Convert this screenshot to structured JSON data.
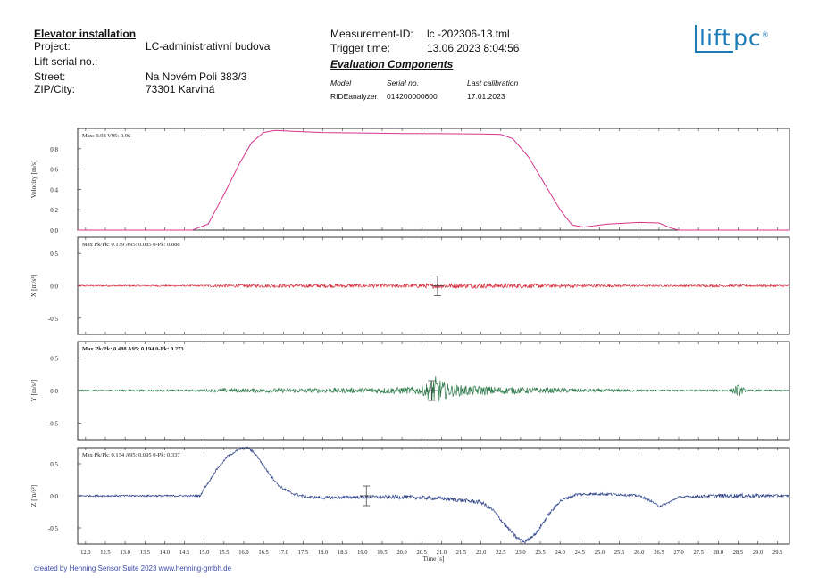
{
  "header": {
    "title": "Elevator installation",
    "project_label": "Project:",
    "project_value": "LC-administrativní budova",
    "serial_label": "Lift serial no.:",
    "street_label": "Street:",
    "street_value": "Na Novém Poli 383/3",
    "zip_label": "ZIP/City:",
    "zip_value": "73301 Karviná",
    "measurement_label": "Measurement-ID:",
    "measurement_value": "lc -202306-13.tml",
    "trigger_label": "Trigger time:",
    "trigger_value": "13.06.2023 8:04:56",
    "eval_title": "Evaluation Components",
    "col_model": "Model",
    "col_serial": "Serial no.",
    "col_calib": "Last calibration",
    "model": "RIDEanalyzer",
    "serial": "014200000600",
    "calibration": "17.01.2023"
  },
  "logo": {
    "text": "lift",
    "text2": "pc",
    "mark": "®",
    "color": "#1d7bb8"
  },
  "footer": "created by Henning Sensor Suite 2023 www.henning-gmbh.de",
  "chart_data": [
    {
      "type": "line",
      "ylabel": "Velocity [m/s]",
      "annotation": "Max: 0.98 V95: 0.96",
      "ylim": [
        0,
        1.0
      ],
      "yticks": [
        0.0,
        0.2,
        0.4,
        0.6,
        0.8
      ],
      "color": "#d4368c",
      "series": [
        {
          "points": [
            [
              11.8,
              0
            ],
            [
              14.7,
              0
            ],
            [
              15.1,
              0.06
            ],
            [
              15.5,
              0.35
            ],
            [
              15.9,
              0.66
            ],
            [
              16.2,
              0.86
            ],
            [
              16.5,
              0.96
            ],
            [
              16.8,
              0.98
            ],
            [
              17.3,
              0.97
            ],
            [
              18.0,
              0.96
            ],
            [
              19.0,
              0.955
            ],
            [
              20.0,
              0.95
            ],
            [
              21.0,
              0.948
            ],
            [
              22.0,
              0.946
            ],
            [
              22.5,
              0.94
            ],
            [
              22.8,
              0.9
            ],
            [
              23.2,
              0.72
            ],
            [
              23.6,
              0.46
            ],
            [
              24.0,
              0.2
            ],
            [
              24.3,
              0.05
            ],
            [
              24.6,
              0.03
            ],
            [
              25.2,
              0.06
            ],
            [
              26.0,
              0.075
            ],
            [
              26.5,
              0.07
            ],
            [
              26.8,
              0.02
            ],
            [
              27.0,
              0
            ],
            [
              29.8,
              0
            ]
          ]
        }
      ]
    },
    {
      "type": "line",
      "ylabel": "X [m/s²]",
      "annotation": "Max Pk/Pk: 0.139 A95: 0.085 0-Pk: 0.088",
      "ylim": [
        -0.75,
        0.75
      ],
      "yticks": [
        0.5,
        0.0,
        -0.5
      ],
      "color": "#d92b3a",
      "noise": [
        [
          11.8,
          0.012
        ],
        [
          14.9,
          0.012
        ],
        [
          15.5,
          0.025
        ],
        [
          20.0,
          0.03
        ],
        [
          21.0,
          0.038
        ],
        [
          23.0,
          0.035
        ],
        [
          24.5,
          0.025
        ],
        [
          26.5,
          0.012
        ],
        [
          27.5,
          0.018
        ],
        [
          29.8,
          0.015
        ]
      ],
      "markers": [
        20.9
      ]
    },
    {
      "type": "line",
      "ylabel": "Y [m/s²]",
      "annotation": "Max Pk/Pk: 0.488 A95: 0.194 0-Pk: 0.273",
      "ylim": [
        -0.75,
        0.75
      ],
      "yticks": [
        0.5,
        0.0,
        -0.5
      ],
      "color": "#2e7a4a",
      "noise": [
        [
          11.8,
          0.012
        ],
        [
          14.9,
          0.015
        ],
        [
          15.5,
          0.03
        ],
        [
          19.0,
          0.04
        ],
        [
          20.5,
          0.06
        ],
        [
          20.85,
          0.22
        ],
        [
          21.2,
          0.09
        ],
        [
          22.0,
          0.07
        ],
        [
          23.0,
          0.05
        ],
        [
          24.5,
          0.03
        ],
        [
          26.5,
          0.012
        ],
        [
          28.3,
          0.015
        ],
        [
          28.5,
          0.1
        ],
        [
          28.7,
          0.015
        ],
        [
          29.8,
          0.012
        ]
      ],
      "markers": [
        20.75
      ]
    },
    {
      "type": "line",
      "ylabel": "Z [m/s²]",
      "xlabel": "Time  [s]",
      "annotation": "Max Pk/Pk: 0.134 A95: 0.095 0-Pk: 0.337",
      "ylim": [
        -0.75,
        0.75
      ],
      "yticks": [
        0.5,
        0.0,
        -0.5
      ],
      "color": "#2a3f86",
      "xticks": [
        12.0,
        12.5,
        13.0,
        13.5,
        14.0,
        14.5,
        15.0,
        15.5,
        16.0,
        16.5,
        17.0,
        17.5,
        18.0,
        18.5,
        19.0,
        19.5,
        20.0,
        20.5,
        21.0,
        21.5,
        22.0,
        22.5,
        23.0,
        23.5,
        24.0,
        24.5,
        25.0,
        25.5,
        26.0,
        26.5,
        27.0,
        27.5,
        28.0,
        28.5,
        29.0,
        29.5
      ],
      "points": [
        [
          11.8,
          0
        ],
        [
          14.9,
          0
        ],
        [
          15.0,
          0.12
        ],
        [
          15.1,
          0.2
        ],
        [
          15.3,
          0.4
        ],
        [
          15.6,
          0.62
        ],
        [
          15.9,
          0.73
        ],
        [
          16.1,
          0.75
        ],
        [
          16.3,
          0.65
        ],
        [
          16.6,
          0.38
        ],
        [
          16.9,
          0.15
        ],
        [
          17.2,
          0.04
        ],
        [
          17.6,
          -0.02
        ],
        [
          18.0,
          -0.03
        ],
        [
          19.0,
          -0.02
        ],
        [
          20.0,
          -0.02
        ],
        [
          21.0,
          -0.04
        ],
        [
          22.0,
          -0.1
        ],
        [
          22.3,
          -0.22
        ],
        [
          22.6,
          -0.45
        ],
        [
          22.9,
          -0.65
        ],
        [
          23.1,
          -0.72
        ],
        [
          23.4,
          -0.58
        ],
        [
          23.7,
          -0.3
        ],
        [
          24.0,
          -0.08
        ],
        [
          24.4,
          0.02
        ],
        [
          25.0,
          0.03
        ],
        [
          25.5,
          0.02
        ],
        [
          26.0,
          0.0
        ],
        [
          26.3,
          -0.08
        ],
        [
          26.5,
          -0.16
        ],
        [
          26.7,
          -0.12
        ],
        [
          27.0,
          -0.02
        ],
        [
          28.0,
          0
        ],
        [
          29.8,
          0
        ]
      ],
      "noise": [
        [
          11.8,
          0.012
        ],
        [
          15.0,
          0.015
        ],
        [
          17.0,
          0.02
        ],
        [
          20.0,
          0.03
        ],
        [
          22.0,
          0.03
        ],
        [
          24.0,
          0.025
        ],
        [
          27.0,
          0.015
        ],
        [
          28.5,
          0.035
        ],
        [
          29.8,
          0.015
        ]
      ],
      "markers": [
        19.1
      ]
    }
  ]
}
